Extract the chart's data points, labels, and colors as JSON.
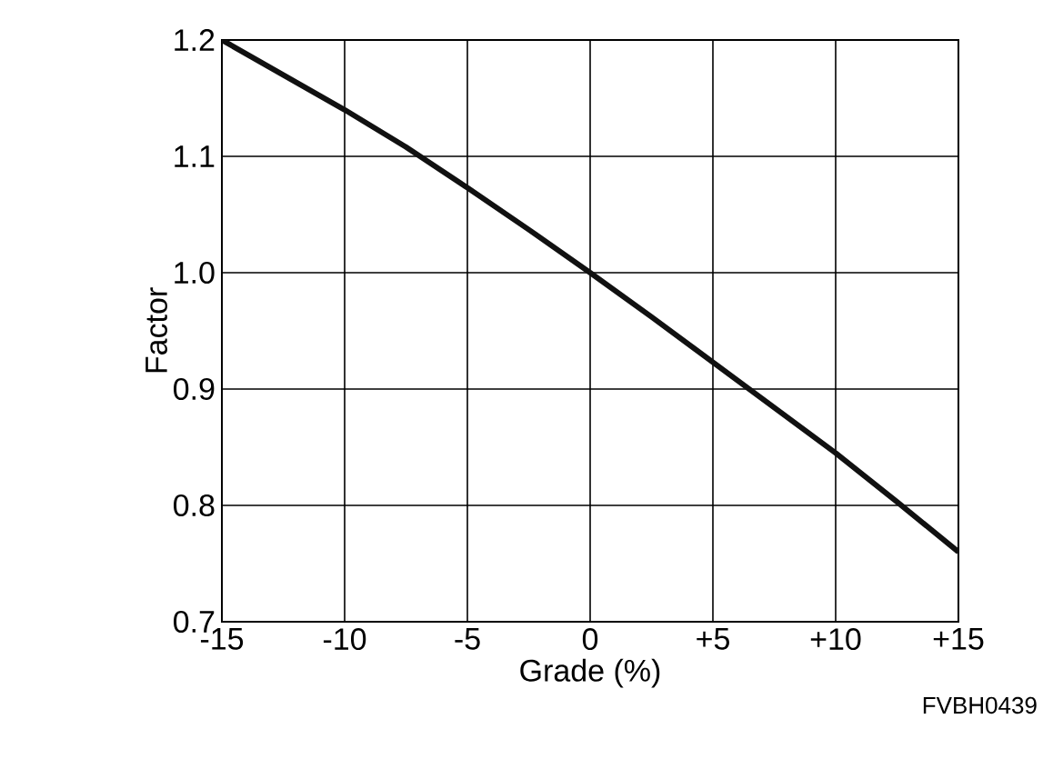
{
  "chart_data": {
    "type": "line",
    "xlabel": "Grade (%)",
    "ylabel": "Factor",
    "x": [
      -15,
      -12.5,
      -10,
      -7.5,
      -5,
      -2.5,
      0,
      2.5,
      5,
      7.5,
      10,
      12.5,
      15
    ],
    "series": [
      {
        "color": "#111111",
        "values": [
          1.2,
          1.17,
          1.14,
          1.108,
          1.073,
          1.037,
          1.0,
          0.962,
          0.923,
          0.884,
          0.845,
          0.803,
          0.76
        ]
      }
    ],
    "xlim": [
      -15,
      15
    ],
    "ylim": [
      0.7,
      1.2
    ],
    "xticks": [
      -15,
      -10,
      -5,
      0,
      {
        "value": 5,
        "label": "+5"
      },
      {
        "value": 10,
        "label": "+10"
      },
      {
        "value": 15,
        "label": "+15"
      }
    ],
    "yticks": [
      {
        "value": 0.7,
        "label": "0.7"
      },
      {
        "value": 0.8,
        "label": "0.8"
      },
      {
        "value": 0.9,
        "label": "0.9"
      },
      {
        "value": 1.0,
        "label": "1.0"
      },
      {
        "value": 1.1,
        "label": "1.1"
      },
      {
        "value": 1.2,
        "label": "1.2"
      }
    ],
    "grid": true,
    "marker": "none",
    "line_style": "solid",
    "annotations": [
      "FVBH0439"
    ]
  }
}
